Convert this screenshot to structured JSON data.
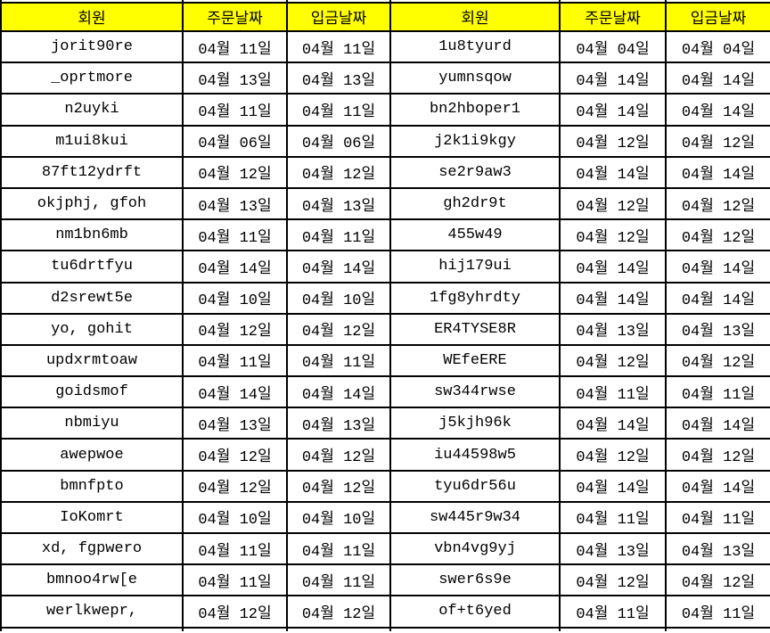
{
  "table": {
    "headers": [
      "회원",
      "주문날짜",
      "입금날짜",
      "회원",
      "주문날짜",
      "입금날짜"
    ],
    "rows": [
      [
        "jorit90re",
        "04월 11일",
        "04월 11일",
        "1u8tyurd",
        "04월 04일",
        "04월 04일"
      ],
      [
        "_oprtmore",
        "04월 13일",
        "04월 13일",
        "yumnsqow",
        "04월 14일",
        "04월 14일"
      ],
      [
        "n2uyki",
        "04월 11일",
        "04월 11일",
        "bn2hboper1",
        "04월 14일",
        "04월 14일"
      ],
      [
        "m1ui8kui",
        "04월 06일",
        "04월 06일",
        "j2k1i9kgy",
        "04월 12일",
        "04월 12일"
      ],
      [
        "87ft12ydrft",
        "04월 12일",
        "04월 12일",
        "se2r9aw3",
        "04월 14일",
        "04월 14일"
      ],
      [
        "okjphj, gfoh",
        "04월 13일",
        "04월 13일",
        "gh2dr9t",
        "04월 12일",
        "04월 12일"
      ],
      [
        "nm1bn6mb",
        "04월 11일",
        "04월 11일",
        "455w49",
        "04월 12일",
        "04월 12일"
      ],
      [
        "tu6drtfyu",
        "04월 14일",
        "04월 14일",
        "hij179ui",
        "04월 14일",
        "04월 14일"
      ],
      [
        "d2srewt5e",
        "04월 10일",
        "04월 10일",
        "1fg8yhrdty",
        "04월 14일",
        "04월 14일"
      ],
      [
        "yo, gohit",
        "04월 12일",
        "04월 12일",
        "ER4TYSE8R",
        "04월 13일",
        "04월 13일"
      ],
      [
        "updxrmtoaw",
        "04월 11일",
        "04월 11일",
        "WEfeERE",
        "04월 12일",
        "04월 12일"
      ],
      [
        "goidsmof",
        "04월 14일",
        "04월 14일",
        "sw344rwse",
        "04월 11일",
        "04월 11일"
      ],
      [
        "nbmiyu",
        "04월 13일",
        "04월 13일",
        "j5kjh96k",
        "04월 14일",
        "04월 14일"
      ],
      [
        "awepwoe",
        "04월 12일",
        "04월 12일",
        "iu44598w5",
        "04월 12일",
        "04월 12일"
      ],
      [
        "bmnfpto",
        "04월 12일",
        "04월 12일",
        "tyu6dr56u",
        "04월 14일",
        "04월 14일"
      ],
      [
        "IoKomrt",
        "04월 10일",
        "04월 10일",
        "sw445r9w34",
        "04월 11일",
        "04월 11일"
      ],
      [
        "xd, fgpwero",
        "04월 11일",
        "04월 11일",
        "vbn4vg9yj",
        "04월 13일",
        "04월 13일"
      ],
      [
        "bmnoo4rw[e",
        "04월 11일",
        "04월 11일",
        "swer6s9e",
        "04월 12일",
        "04월 12일"
      ],
      [
        "werlkwepr,",
        "04월 12일",
        "04월 12일",
        "of+t6yed",
        "04월 11일",
        "04월 11일"
      ]
    ],
    "colors": {
      "header_bg": "#FFFF00",
      "border": "#000000",
      "text": "#000000",
      "background": "#FFFFFF"
    }
  }
}
